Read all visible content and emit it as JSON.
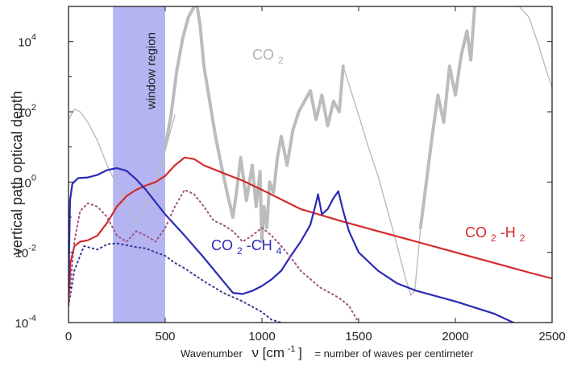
{
  "chart_data": {
    "type": "line",
    "xlim": [
      0,
      2500
    ],
    "ylim": [
      0.0001,
      100000
    ],
    "yscale": "log",
    "grid": false,
    "xticks": [
      "0",
      "500",
      "1000",
      "1500",
      "2000",
      "2500"
    ],
    "yticks": [
      {
        "base": "10",
        "exp": "-4"
      },
      {
        "base": "10",
        "exp": "-2"
      },
      {
        "base": "10",
        "exp": "0"
      },
      {
        "base": "10",
        "exp": "2"
      },
      {
        "base": "10",
        "exp": "4"
      }
    ],
    "ylabel": "vertical path optical depth",
    "xlabel": {
      "main": "Wavenumber",
      "symbol": "ν [cm",
      "sup": "-1",
      "close": "]",
      "note": "= number of waves per centimeter"
    },
    "band": {
      "label": "window region",
      "x": [
        230,
        500
      ],
      "color": "#b4b4f2"
    },
    "labels": {
      "co2": {
        "main": "CO",
        "sub": "2",
        "color": "#b3b3b3"
      },
      "co2_ch4": {
        "main": "CO",
        "sub1": "2",
        "mid": "-CH",
        "sub2": "4",
        "color": "#2a2ab5"
      },
      "co2_h2": {
        "main": "CO",
        "sub1": "2",
        "mid": "-H",
        "sub2": "2",
        "color": "#d42a2a"
      }
    },
    "colors": {
      "co2": "#bcbcbc",
      "co2_ch4": "#2a2ab5",
      "co2_h2": "#d42a2a",
      "dotted_ch4": "#3a3a90",
      "dotted_h2": "#a05080",
      "axis": "#222222"
    },
    "series": [
      {
        "id": "co2_thin",
        "style": "solid",
        "width": 1.4,
        "color_key": "co2",
        "x": [
          0,
          30,
          60,
          100,
          150,
          200,
          250,
          300,
          350,
          400,
          450,
          500,
          550
        ],
        "y": [
          60,
          120,
          100,
          50,
          15,
          3,
          0.8,
          0.25,
          0.07,
          0.2,
          1,
          8,
          80
        ]
      },
      {
        "id": "co2_main",
        "style": "solid",
        "width": 4,
        "color_key": "co2",
        "x": [
          500,
          530,
          560,
          590,
          620,
          650,
          665,
          680,
          700,
          730,
          760,
          790,
          820,
          850,
          870,
          890,
          920,
          950,
          970,
          990,
          1000,
          1010,
          1025,
          1040,
          1060,
          1080,
          1100,
          1130,
          1160,
          1190,
          1220,
          1250,
          1280,
          1310,
          1340,
          1370,
          1400,
          1420
        ],
        "y": [
          10,
          80,
          1500,
          12000,
          50000,
          100000,
          100000,
          30000,
          2000,
          200,
          20,
          3,
          0.5,
          0.1,
          0.6,
          5,
          0.3,
          3,
          0.2,
          2,
          0.02,
          0.2,
          0.05,
          1,
          0.5,
          5,
          20,
          3,
          30,
          100,
          200,
          400,
          60,
          300,
          40,
          200,
          100,
          2000
        ]
      },
      {
        "id": "co2_thin_mid",
        "style": "solid",
        "width": 1.4,
        "color_key": "co2",
        "x": [
          1420,
          1450,
          1500,
          1550,
          1600,
          1650,
          1700,
          1740,
          1770,
          1790,
          1800,
          1820
        ],
        "y": [
          2000,
          600,
          80,
          10,
          1.5,
          0.15,
          0.015,
          0.002,
          0.0006,
          0.0008,
          0.003,
          0.05
        ]
      },
      {
        "id": "co2_main2",
        "style": "solid",
        "width": 4,
        "color_key": "co2",
        "x": [
          1820,
          1850,
          1880,
          1910,
          1940,
          1970,
          2000,
          2030,
          2060,
          2080,
          2100
        ],
        "y": [
          0.05,
          1,
          20,
          300,
          50,
          2000,
          300,
          4000,
          20000,
          3000,
          100000
        ]
      },
      {
        "id": "co2_thin_end",
        "style": "solid",
        "width": 1.4,
        "color_key": "co2",
        "x": [
          2280,
          2330,
          2380,
          2430,
          2470,
          2500
        ],
        "y": [
          100000,
          100000,
          50000,
          8000,
          1500,
          500
        ]
      },
      {
        "id": "co2_h2",
        "style": "solid",
        "width": 2.2,
        "color_key": "co2_h2",
        "x": [
          0,
          10,
          30,
          60,
          100,
          150,
          200,
          250,
          300,
          350,
          400,
          450,
          500,
          550,
          600,
          650,
          700,
          800,
          900,
          1000,
          1200,
          1400,
          1600,
          1800,
          2000,
          2200,
          2400,
          2500
        ],
        "y": [
          0.0003,
          0.005,
          0.015,
          0.02,
          0.022,
          0.03,
          0.07,
          0.2,
          0.4,
          0.6,
          0.8,
          1,
          1.5,
          3,
          5,
          4.5,
          3,
          1.8,
          1.1,
          0.6,
          0.17,
          0.08,
          0.04,
          0.02,
          0.01,
          0.005,
          0.0025,
          0.0018
        ]
      },
      {
        "id": "co2_ch4",
        "style": "solid",
        "width": 2.2,
        "color_key": "co2_ch4",
        "x": [
          0,
          8,
          20,
          50,
          100,
          150,
          200,
          250,
          300,
          350,
          400,
          500,
          600,
          700,
          800,
          850,
          900,
          950,
          1000,
          1050,
          1100,
          1150,
          1200,
          1250,
          1275,
          1290,
          1310,
          1340,
          1370,
          1395,
          1420,
          1450,
          1500,
          1600,
          1700,
          1800,
          2000,
          2200,
          2300
        ],
        "y": [
          0.001,
          0.3,
          0.9,
          1.3,
          1.35,
          1.6,
          2.2,
          2.5,
          2.1,
          1.2,
          0.6,
          0.12,
          0.03,
          0.007,
          0.0015,
          0.0007,
          0.00065,
          0.0008,
          0.0011,
          0.0017,
          0.003,
          0.008,
          0.02,
          0.06,
          0.2,
          0.45,
          0.12,
          0.17,
          0.35,
          0.55,
          0.15,
          0.04,
          0.01,
          0.003,
          0.0013,
          0.0008,
          0.0004,
          0.00018,
          0.0001
        ]
      },
      {
        "id": "dotted_ch4",
        "style": "dotted",
        "width": 2,
        "color_key": "dotted_ch4",
        "x": [
          0,
          30,
          80,
          150,
          200,
          250,
          300,
          350,
          400,
          450,
          500,
          550,
          600,
          700,
          800,
          900,
          1000,
          1050,
          1100
        ],
        "y": [
          0.0003,
          0.003,
          0.015,
          0.012,
          0.017,
          0.018,
          0.016,
          0.014,
          0.013,
          0.01,
          0.008,
          0.005,
          0.0035,
          0.0015,
          0.0007,
          0.0004,
          0.0002,
          0.00012,
          0.0001
        ]
      },
      {
        "id": "dotted_h2",
        "style": "dotted",
        "width": 2,
        "color_key": "dotted_h2",
        "x": [
          0,
          30,
          60,
          100,
          150,
          200,
          250,
          300,
          350,
          400,
          450,
          500,
          550,
          600,
          650,
          700,
          750,
          800,
          850,
          900,
          950,
          1000,
          1050,
          1100,
          1150,
          1200,
          1300,
          1400,
          1450,
          1500
        ],
        "y": [
          0.0003,
          0.02,
          0.15,
          0.25,
          0.2,
          0.1,
          0.03,
          0.02,
          0.04,
          0.03,
          0.02,
          0.05,
          0.2,
          0.6,
          0.45,
          0.2,
          0.08,
          0.06,
          0.04,
          0.02,
          0.03,
          0.05,
          0.03,
          0.015,
          0.007,
          0.003,
          0.001,
          0.0005,
          0.0003,
          0.0001
        ]
      }
    ]
  }
}
